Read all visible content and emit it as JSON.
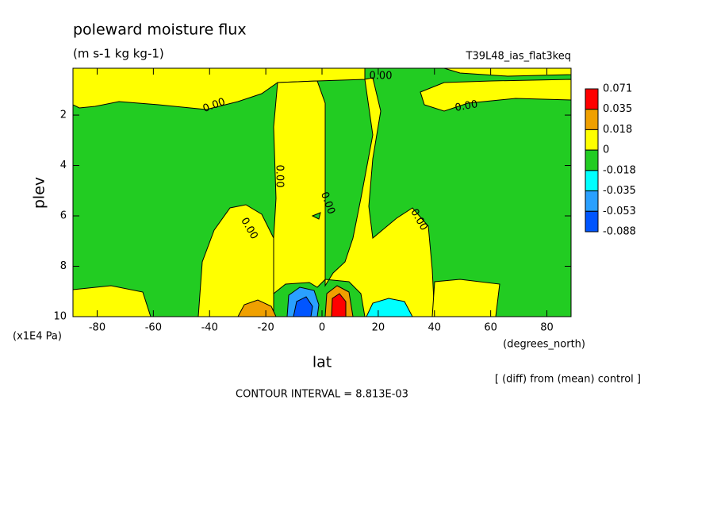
{
  "chart_data": {
    "type": "contour",
    "title": "poleward moisture flux",
    "subtitle": "(m s-1 kg kg-1)",
    "run_label": "T39L48_ias_flat3keq",
    "x_label": "lat",
    "x_units": "(degrees_north)",
    "y_label": "plev",
    "y_units": "(x1E4 Pa)",
    "xlim": [
      -88.6,
      88.6
    ],
    "xticks": [
      -80,
      -60,
      -40,
      -20,
      0,
      20,
      40,
      60,
      80
    ],
    "ylim": [
      10,
      0.14
    ],
    "yticks": [
      2,
      4,
      6,
      8,
      10
    ],
    "levels": [
      0.071,
      0.035,
      0.018,
      0,
      -0.018,
      -0.035,
      -0.053,
      -0.088
    ],
    "level_colors": [
      "#ff0000",
      "#f0a000",
      "#ffff00",
      "#22cc22",
      "#00ffff",
      "#2aa0ff",
      "#0055ff"
    ],
    "contour_labels": [
      "0.00",
      "0.00",
      "0.00",
      "0.00",
      "0.00",
      "0.00",
      "0.00"
    ],
    "note": "[ (diff) from (mean) control ]",
    "contour_interval": "CONTOUR INTERVAL = 8.813E-03"
  }
}
